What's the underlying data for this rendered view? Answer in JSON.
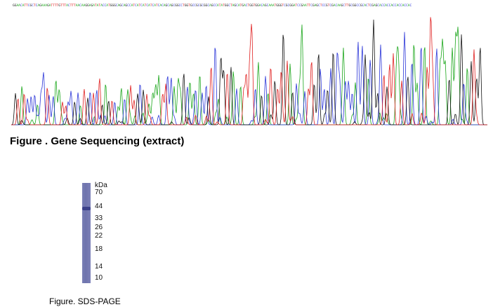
{
  "figure1": {
    "caption": "Figure . Gene Sequencing (extract)",
    "sequence": "GGAACATTCGCTCAGAAAGATTTTGTTTACTTTAACAAGGAGATATACCATGGGCAGCAGCCATCATCATCATCATCACAGCAGCGGCCTGGTGCCGCGCGGCAGCCATATGGCTAGCATGACTGGTGGACAGCAAATGGGTCGCGGATCCGAATTCGAGCTCCGTCGACAAGCTTGCGGCCGCACTCGAGCACCACCACCACCACCAC",
    "base_colors": {
      "A": "#1aa61a",
      "C": "#2a35d8",
      "G": "#111111",
      "T": "#e02020"
    }
  },
  "figure2": {
    "caption": "Figure. SDS-PAGE",
    "unit_label": "kDa",
    "markers": [
      "70",
      "44",
      "33",
      "26",
      "22",
      "18",
      "14",
      "10"
    ],
    "lane_color": "#7478b2",
    "band_color": "#3c418a"
  }
}
